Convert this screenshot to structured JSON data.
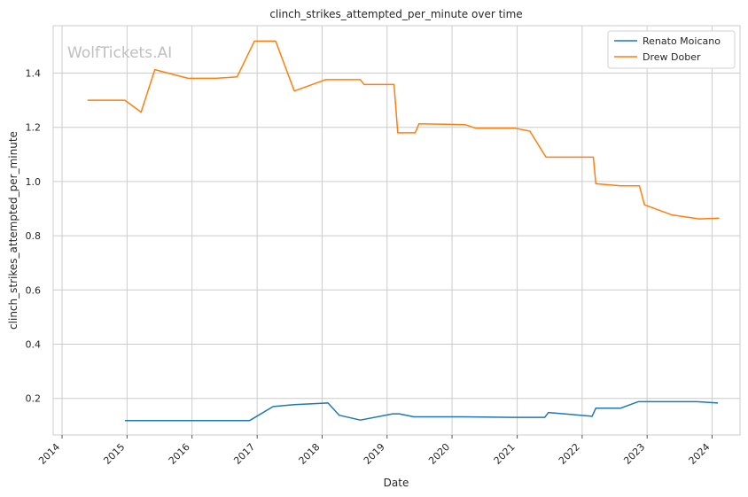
{
  "chart_data": {
    "type": "line",
    "title": "clinch_strikes_attempted_per_minute over time",
    "xlabel": "Date",
    "ylabel": "clinch_strikes_attempted_per_minute",
    "xlim": [
      "2013-11-12",
      "2024-06-06"
    ],
    "ylim": [
      0.065,
      1.575
    ],
    "x_ticks": [
      "2014",
      "2015",
      "2016",
      "2017",
      "2018",
      "2019",
      "2020",
      "2021",
      "2022",
      "2023",
      "2024"
    ],
    "y_ticks": [
      "0.2",
      "0.4",
      "0.6",
      "0.8",
      "1.0",
      "1.2",
      "1.4"
    ],
    "grid": true,
    "legend_position": "top-right",
    "watermark": "WolfTickets.AI",
    "series": [
      {
        "name": "Renato Moicano",
        "color": "#1f77b4",
        "points": [
          [
            "2014-12-20",
            0.118
          ],
          [
            "2016-11-19",
            0.118
          ],
          [
            "2017-04-01",
            0.17
          ],
          [
            "2017-07-29",
            0.177
          ],
          [
            "2018-02-03",
            0.183
          ],
          [
            "2018-04-07",
            0.138
          ],
          [
            "2018-08-04",
            0.12
          ],
          [
            "2019-02-02",
            0.143
          ],
          [
            "2019-03-09",
            0.143
          ],
          [
            "2019-06-01",
            0.132
          ],
          [
            "2020-03-07",
            0.132
          ],
          [
            "2020-07-01",
            0.131
          ],
          [
            "2020-12-12",
            0.13
          ],
          [
            "2021-06-05",
            0.13
          ],
          [
            "2021-06-26",
            0.148
          ],
          [
            "2022-02-26",
            0.134
          ],
          [
            "2022-03-19",
            0.164
          ],
          [
            "2022-08-06",
            0.164
          ],
          [
            "2022-11-12",
            0.188
          ],
          [
            "2023-10-07",
            0.188
          ],
          [
            "2024-02-03",
            0.183
          ]
        ]
      },
      {
        "name": "Drew Dober",
        "color": "#ff7f0e",
        "points": [
          [
            "2014-05-24",
            1.3
          ],
          [
            "2014-12-20",
            1.3
          ],
          [
            "2015-03-21",
            1.256
          ],
          [
            "2015-06-06",
            1.413
          ],
          [
            "2015-12-10",
            1.381
          ],
          [
            "2016-05-14",
            1.381
          ],
          [
            "2016-09-10",
            1.386
          ],
          [
            "2016-12-17",
            1.518
          ],
          [
            "2017-04-15",
            1.518
          ],
          [
            "2017-07-29",
            1.334
          ],
          [
            "2018-01-20",
            1.376
          ],
          [
            "2018-08-04",
            1.376
          ],
          [
            "2018-08-25",
            1.358
          ],
          [
            "2019-02-09",
            1.358
          ],
          [
            "2019-03-02",
            1.18
          ],
          [
            "2019-06-08",
            1.18
          ],
          [
            "2019-06-29",
            1.213
          ],
          [
            "2020-03-14",
            1.21
          ],
          [
            "2020-05-13",
            1.197
          ],
          [
            "2020-12-19",
            1.197
          ],
          [
            "2021-03-13",
            1.186
          ],
          [
            "2021-06-12",
            1.09
          ],
          [
            "2022-03-05",
            1.09
          ],
          [
            "2022-03-19",
            0.992
          ],
          [
            "2022-08-06",
            0.984
          ],
          [
            "2022-11-19",
            0.984
          ],
          [
            "2022-12-17",
            0.914
          ],
          [
            "2023-05-20",
            0.877
          ],
          [
            "2023-10-21",
            0.862
          ],
          [
            "2024-02-10",
            0.865
          ]
        ]
      }
    ]
  }
}
